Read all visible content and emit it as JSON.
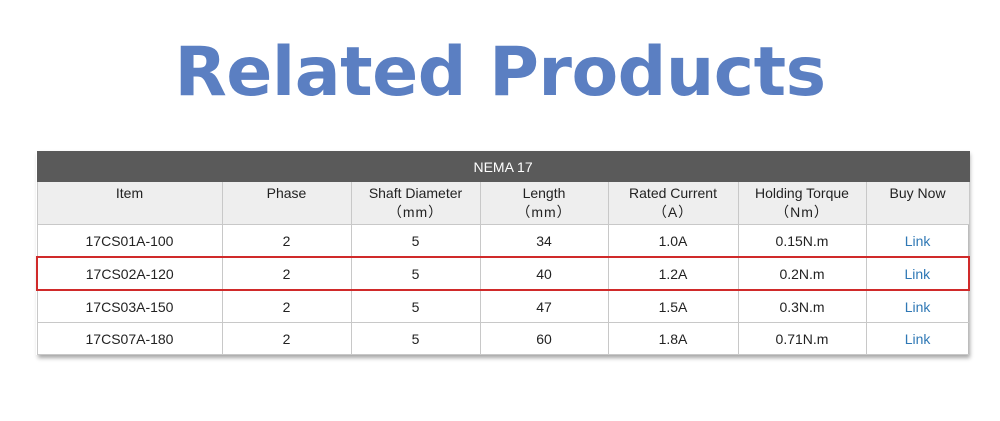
{
  "page": {
    "title": "Related Products"
  },
  "table": {
    "caption": "NEMA 17",
    "headers": [
      {
        "label": "Item",
        "unit": ""
      },
      {
        "label": "Phase",
        "unit": ""
      },
      {
        "label": "Shaft Diameter",
        "unit": "（mm）"
      },
      {
        "label": "Length",
        "unit": "（mm）"
      },
      {
        "label": "Rated Current",
        "unit": "（A）"
      },
      {
        "label": "Holding Torque",
        "unit": "（Nm）"
      },
      {
        "label": "Buy Now",
        "unit": ""
      }
    ],
    "rows": [
      {
        "item": "17CS01A-100",
        "phase": "2",
        "shaft": "5",
        "length": "34",
        "current": "1.0A",
        "torque": "0.15N.m",
        "buy": "Link"
      },
      {
        "item": "17CS02A-120",
        "phase": "2",
        "shaft": "5",
        "length": "40",
        "current": "1.2A",
        "torque": "0.2N.m",
        "buy": "Link"
      },
      {
        "item": "17CS03A-150",
        "phase": "2",
        "shaft": "5",
        "length": "47",
        "current": "1.5A",
        "torque": "0.3N.m",
        "buy": "Link"
      },
      {
        "item": "17CS07A-180",
        "phase": "2",
        "shaft": "5",
        "length": "60",
        "current": "1.8A",
        "torque": "0.71N.m",
        "buy": "Link"
      }
    ],
    "highlighted_row": 1
  },
  "colors": {
    "title": "#5b7fc2",
    "caption_bg": "#5a5a5a",
    "header_bg": "#eeeeee",
    "highlight_border": "#d02a2a",
    "link": "#2f78b5"
  }
}
